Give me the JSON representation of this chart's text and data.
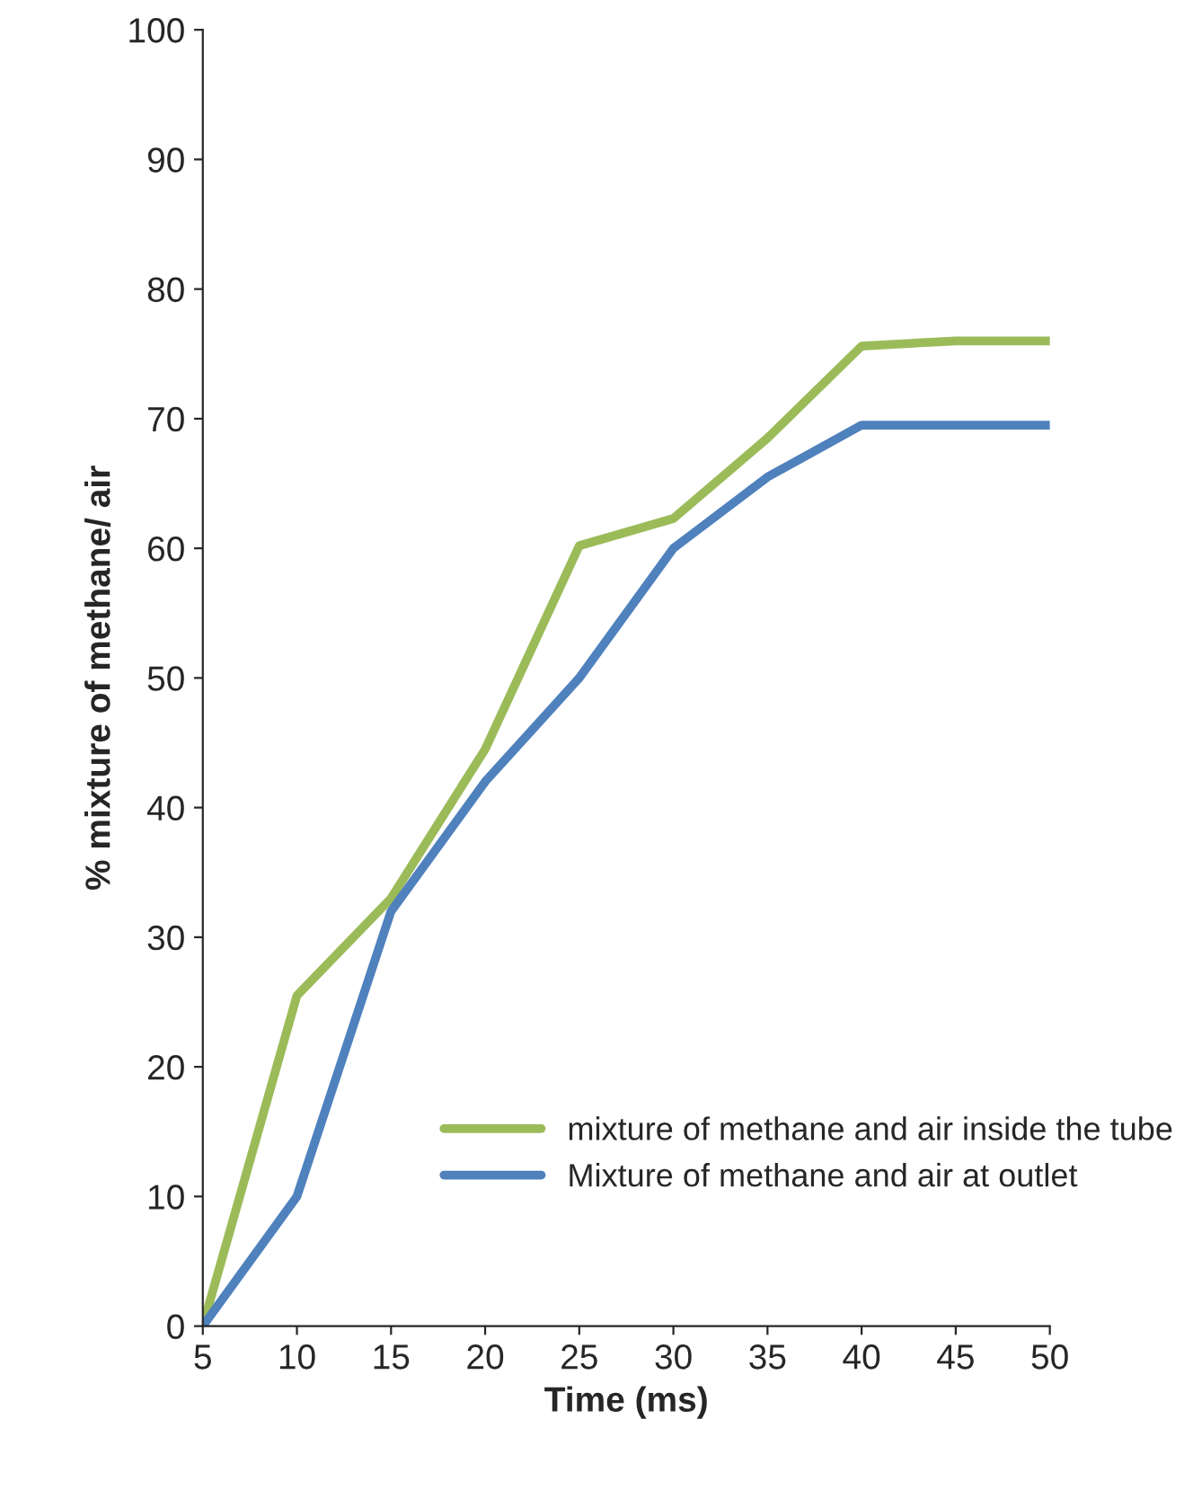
{
  "chart_data": {
    "type": "line",
    "xlabel": "Time (ms)",
    "ylabel": "% mixture of methane/ air",
    "x": [
      5,
      10,
      15,
      20,
      25,
      30,
      35,
      40,
      45,
      50
    ],
    "series": [
      {
        "name": "mixture of methane and air inside the tube",
        "color": "#9bbb59",
        "values": [
          0,
          25.5,
          33,
          44.5,
          60.2,
          62.3,
          68.5,
          75.6,
          76,
          76
        ]
      },
      {
        "name": "Mixture of methane and air at outlet",
        "color": "#4f81bd",
        "values": [
          0,
          10,
          32,
          42,
          50,
          60,
          65.5,
          69.5,
          69.5,
          69.5
        ]
      }
    ],
    "xlim": [
      5,
      50
    ],
    "xticks": [
      5,
      10,
      15,
      20,
      25,
      30,
      35,
      40,
      45,
      50
    ],
    "ylim": [
      0,
      100
    ],
    "yticks": [
      0,
      10,
      20,
      30,
      40,
      50,
      60,
      70,
      80,
      90,
      100
    ],
    "grid": false,
    "legend": "bottom right",
    "marker": "none",
    "line_style": "solid"
  }
}
